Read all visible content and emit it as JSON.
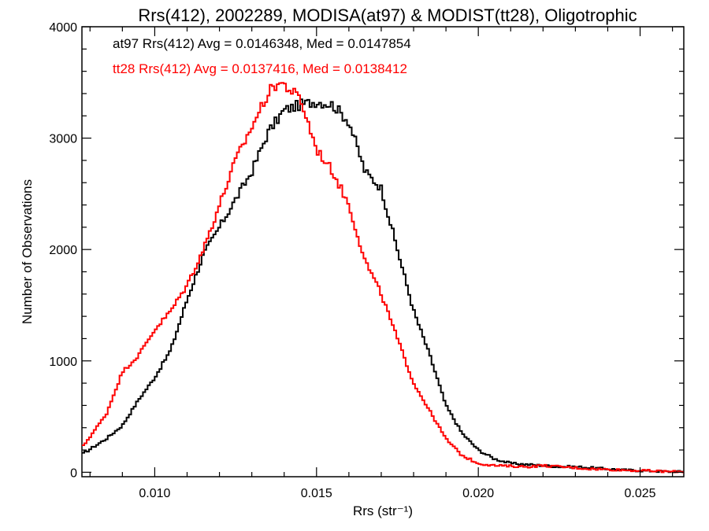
{
  "chart_data": {
    "type": "line",
    "step": true,
    "title": "Rrs(412), 2002289, MODISA(at97) & MODIST(tt28), Oligotrophic",
    "xlabel": "Rrs (str⁻¹)",
    "ylabel": "Number of Observations",
    "xlim": [
      0.00775,
      0.02635
    ],
    "ylim": [
      -40,
      4000
    ],
    "xticks": [
      0.01,
      0.015,
      0.02,
      0.025
    ],
    "xtick_labels": [
      "0.010",
      "0.015",
      "0.020",
      "0.025"
    ],
    "yticks": [
      0,
      1000,
      2000,
      3000,
      4000
    ],
    "ytick_labels": [
      "0",
      "1000",
      "2000",
      "3000",
      "4000"
    ],
    "grid": false,
    "legend_placement": "top-left",
    "annotations": [
      {
        "text": "at97 Rrs(412) Avg = 0.0146348, Med = 0.0147854",
        "color": "#000000"
      },
      {
        "text": "tt28 Rrs(412) Avg = 0.0137416, Med = 0.0138412",
        "color": "#ff0000"
      }
    ],
    "series": [
      {
        "color": "#000000",
        "x": [
          0.00775,
          0.0085,
          0.009,
          0.0095,
          0.01,
          0.0105,
          0.011,
          0.0115,
          0.012,
          0.0125,
          0.013,
          0.0135,
          0.014,
          0.0145,
          0.015,
          0.0152,
          0.0155,
          0.016,
          0.0165,
          0.017,
          0.0175,
          0.018,
          0.0185,
          0.019,
          0.0195,
          0.02,
          0.0205,
          0.021,
          0.0215,
          0.022,
          0.0225,
          0.023,
          0.0235,
          0.024,
          0.0245,
          0.025,
          0.0255,
          0.026,
          0.02635
        ],
        "y": [
          160,
          300,
          420,
          650,
          850,
          1100,
          1550,
          1950,
          2200,
          2450,
          2700,
          3050,
          3250,
          3300,
          3330,
          3320,
          3300,
          3150,
          2700,
          2550,
          2000,
          1450,
          1050,
          600,
          350,
          200,
          120,
          80,
          70,
          60,
          50,
          50,
          40,
          30,
          20,
          15,
          10,
          5,
          5
        ]
      },
      {
        "color": "#ff0000",
        "x": [
          0.00775,
          0.0085,
          0.009,
          0.0095,
          0.01,
          0.0105,
          0.011,
          0.0115,
          0.012,
          0.0125,
          0.013,
          0.0135,
          0.0138,
          0.014,
          0.0145,
          0.015,
          0.0155,
          0.016,
          0.0165,
          0.017,
          0.0175,
          0.018,
          0.0185,
          0.019,
          0.0195,
          0.02,
          0.0205,
          0.021,
          0.0215,
          0.022,
          0.0225,
          0.023,
          0.0235,
          0.024,
          0.0245,
          0.025,
          0.0255,
          0.026,
          0.02635
        ],
        "y": [
          220,
          520,
          900,
          1050,
          1280,
          1450,
          1680,
          2000,
          2400,
          2800,
          3100,
          3400,
          3500,
          3480,
          3350,
          2900,
          2700,
          2400,
          1900,
          1600,
          1200,
          800,
          550,
          300,
          150,
          80,
          60,
          55,
          50,
          60,
          50,
          40,
          30,
          25,
          20,
          15,
          10,
          5,
          5
        ]
      }
    ]
  }
}
